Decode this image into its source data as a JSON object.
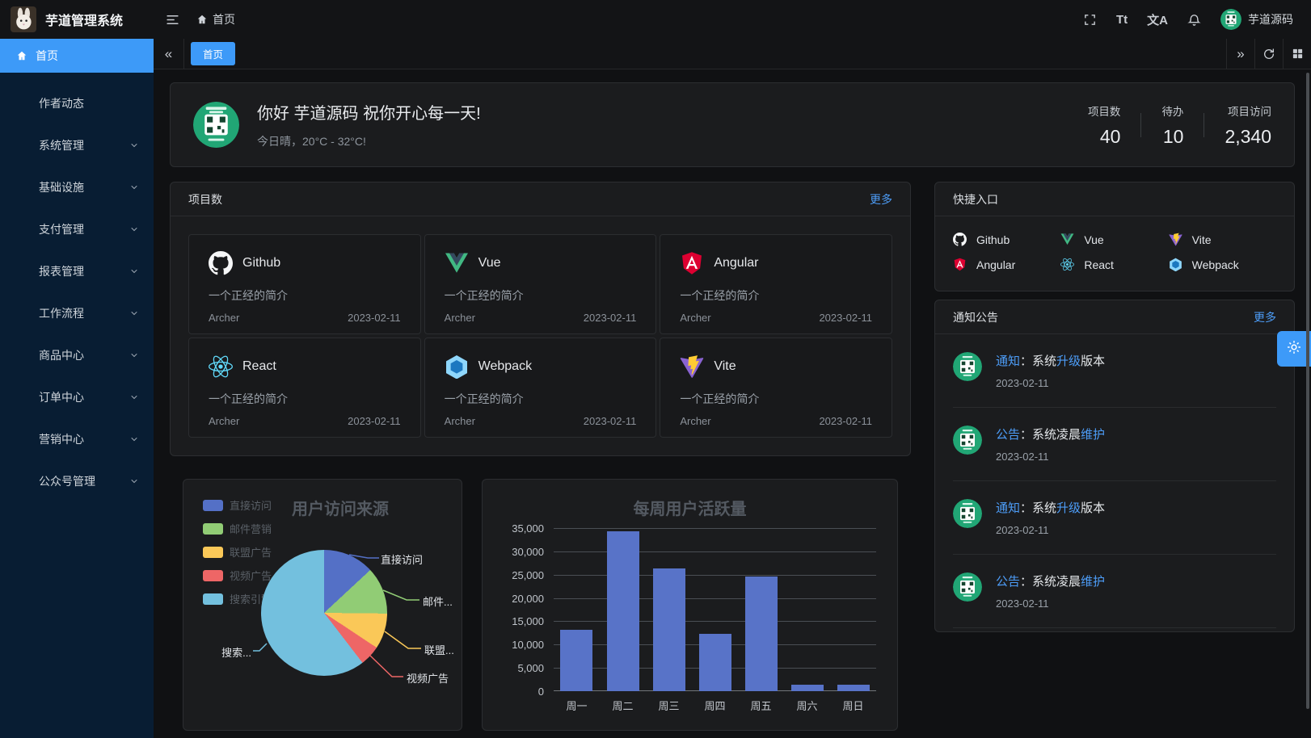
{
  "app": {
    "title": "芋道管理系统",
    "username": "芋道源码"
  },
  "theme": {
    "accent": "#3d9af8",
    "link": "#4d9df8",
    "avatar_green": "#21a675"
  },
  "breadcrumb": {
    "home": "首页"
  },
  "sidebar": {
    "items": [
      {
        "label": "首页",
        "icon": "home-icon",
        "active": true,
        "expandable": false
      },
      {
        "label": "作者动态",
        "active": false,
        "expandable": false
      },
      {
        "label": "系统管理",
        "active": false,
        "expandable": true
      },
      {
        "label": "基础设施",
        "active": false,
        "expandable": true
      },
      {
        "label": "支付管理",
        "active": false,
        "expandable": true
      },
      {
        "label": "报表管理",
        "active": false,
        "expandable": true
      },
      {
        "label": "工作流程",
        "active": false,
        "expandable": true
      },
      {
        "label": "商品中心",
        "active": false,
        "expandable": true
      },
      {
        "label": "订单中心",
        "active": false,
        "expandable": true
      },
      {
        "label": "营销中心",
        "active": false,
        "expandable": true
      },
      {
        "label": "公众号管理",
        "active": false,
        "expandable": true
      }
    ]
  },
  "tabs": [
    {
      "label": "首页",
      "active": true
    }
  ],
  "greeting": {
    "title": "你好 芋道源码 祝你开心每一天!",
    "subtitle": "今日晴，20°C - 32°C!",
    "stats": [
      {
        "label": "项目数",
        "value": "40"
      },
      {
        "label": "待办",
        "value": "10"
      },
      {
        "label": "项目访问",
        "value": "2,340"
      }
    ]
  },
  "projects": {
    "title": "项目数",
    "more": "更多",
    "items": [
      {
        "name": "Github",
        "icon": "github-icon",
        "desc": "一个正经的简介",
        "author": "Archer",
        "date": "2023-02-11"
      },
      {
        "name": "Vue",
        "icon": "vue-icon",
        "desc": "一个正经的简介",
        "author": "Archer",
        "date": "2023-02-11"
      },
      {
        "name": "Angular",
        "icon": "angular-icon",
        "desc": "一个正经的简介",
        "author": "Archer",
        "date": "2023-02-11"
      },
      {
        "name": "React",
        "icon": "react-icon",
        "desc": "一个正经的简介",
        "author": "Archer",
        "date": "2023-02-11"
      },
      {
        "name": "Webpack",
        "icon": "webpack-icon",
        "desc": "一个正经的简介",
        "author": "Archer",
        "date": "2023-02-11"
      },
      {
        "name": "Vite",
        "icon": "vite-icon",
        "desc": "一个正经的简介",
        "author": "Archer",
        "date": "2023-02-11"
      }
    ]
  },
  "shortcuts": {
    "title": "快捷入口",
    "items": [
      {
        "name": "Github",
        "icon": "github-icon"
      },
      {
        "name": "Vue",
        "icon": "vue-icon"
      },
      {
        "name": "Vite",
        "icon": "vite-icon"
      },
      {
        "name": "Angular",
        "icon": "angular-icon"
      },
      {
        "name": "React",
        "icon": "react-icon"
      },
      {
        "name": "Webpack",
        "icon": "webpack-icon"
      }
    ]
  },
  "notices": {
    "title": "通知公告",
    "more": "更多",
    "items": [
      {
        "tag": "通知",
        "pre": "：系统",
        "hl": "升级",
        "post": "版本",
        "date": "2023-02-11"
      },
      {
        "tag": "公告",
        "pre": "：系统凌晨",
        "hl": "维护",
        "post": "",
        "date": "2023-02-11"
      },
      {
        "tag": "通知",
        "pre": "：系统",
        "hl": "升级",
        "post": "版本",
        "date": "2023-02-11"
      },
      {
        "tag": "公告",
        "pre": "：系统凌晨",
        "hl": "维护",
        "post": "",
        "date": "2023-02-11"
      }
    ]
  },
  "chart_data": [
    {
      "type": "pie",
      "title": "用户访问来源",
      "legend_position": "left",
      "legend": [
        "直接访问",
        "邮件营销",
        "联盟广告",
        "视频广告",
        "搜索引擎"
      ],
      "series": [
        {
          "name": "直接访问",
          "value": 335
        },
        {
          "name": "邮件营销",
          "value": 310
        },
        {
          "name": "联盟广告",
          "value": 234
        },
        {
          "name": "视频广告",
          "value": 135
        },
        {
          "name": "搜索引擎",
          "value": 1548
        }
      ],
      "callout_labels": [
        "直接访问",
        "邮件...",
        "联盟...",
        "视频广告",
        "搜索..."
      ],
      "colors": [
        "#5470c6",
        "#91cc75",
        "#fac858",
        "#ee6666",
        "#73c0de"
      ]
    },
    {
      "type": "bar",
      "title": "每周用户活跃量",
      "categories": [
        "周一",
        "周二",
        "周三",
        "周四",
        "周五",
        "周六",
        "周日"
      ],
      "values": [
        13253,
        34235,
        26321,
        12340,
        24643,
        1322,
        1324
      ],
      "ylim": [
        0,
        35000
      ],
      "ytick_step": 5000,
      "ytick_labels": [
        "0",
        "5,000",
        "10,000",
        "15,000",
        "20,000",
        "25,000",
        "30,000",
        "35,000"
      ],
      "bar_color": "#5873c8",
      "grid": true
    }
  ],
  "toolbar": {
    "fullscreen": "fullscreen",
    "font_size": "Tt",
    "language": "文A"
  }
}
